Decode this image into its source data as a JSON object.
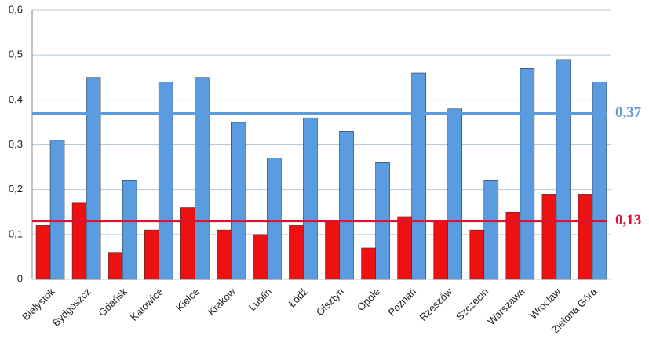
{
  "chart_data": {
    "type": "bar",
    "categories": [
      "Białystok",
      "Bydgoszcz",
      "Gdańsk",
      "Katowice",
      "Kielce",
      "Kraków",
      "Lublin",
      "Łódź",
      "Olsztyn",
      "Opole",
      "Poznań",
      "Rzeszów",
      "Szczecin",
      "Warszawa",
      "Wrocław",
      "Zielona Góra"
    ],
    "series": [
      {
        "color": "#ee1111",
        "values": [
          0.12,
          0.17,
          0.06,
          0.11,
          0.16,
          0.11,
          0.1,
          0.12,
          0.13,
          0.07,
          0.14,
          0.13,
          0.11,
          0.15,
          0.19,
          0.19
        ]
      },
      {
        "color": "#5b9be0",
        "values": [
          0.31,
          0.45,
          0.22,
          0.44,
          0.45,
          0.35,
          0.27,
          0.36,
          0.33,
          0.26,
          0.46,
          0.38,
          0.22,
          0.47,
          0.49,
          0.44
        ]
      }
    ],
    "ylim": [
      0,
      0.6
    ],
    "yticks": [
      {
        "value": 0,
        "label": "0"
      },
      {
        "value": 0.1,
        "label": "0,1"
      },
      {
        "value": 0.2,
        "label": "0,2"
      },
      {
        "value": 0.3,
        "label": "0,3"
      },
      {
        "value": 0.4,
        "label": "0,4"
      },
      {
        "value": 0.5,
        "label": "0,5"
      },
      {
        "value": 0.6,
        "label": "0,6"
      }
    ],
    "grid": true,
    "reference_lines": [
      {
        "value": 0.37,
        "label": "0,37",
        "color": "#5b9be0"
      },
      {
        "value": 0.13,
        "label": "0,13",
        "color": "#dd1133"
      }
    ]
  }
}
